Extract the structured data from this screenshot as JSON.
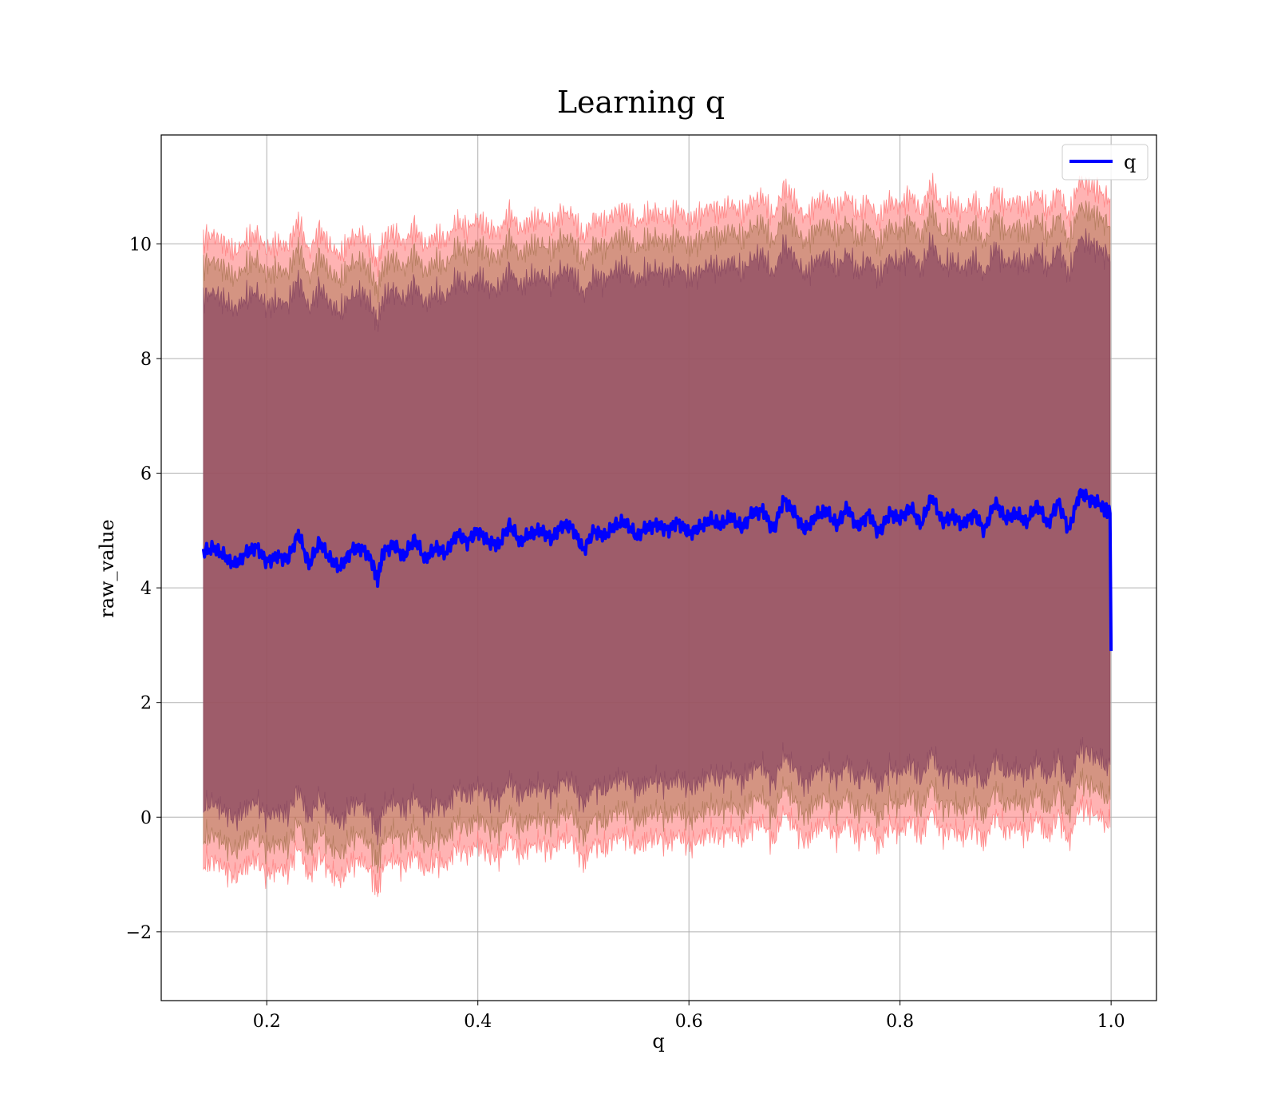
{
  "chart_data": {
    "type": "line",
    "title": "Learning q",
    "xlabel": "q",
    "ylabel": "raw_value",
    "xlim": [
      0.1,
      1.043
    ],
    "ylim": [
      -3.2,
      11.9
    ],
    "xticks": [
      0.2,
      0.4,
      0.6,
      0.8,
      1.0
    ],
    "xtick_labels": [
      "0.2",
      "0.4",
      "0.6",
      "0.8",
      "1.0"
    ],
    "yticks": [
      -2,
      0,
      2,
      4,
      6,
      8,
      10
    ],
    "ytick_labels": [
      "−2",
      "0",
      "2",
      "4",
      "6",
      "8",
      "10"
    ],
    "grid": true,
    "legend": {
      "position": "top-right",
      "entries": [
        {
          "name": "q",
          "color": "#0000ff"
        }
      ]
    },
    "series": [
      {
        "name": "q",
        "color": "#0000ff",
        "x": [
          0.14,
          0.15,
          0.16,
          0.17,
          0.18,
          0.19,
          0.2,
          0.21,
          0.22,
          0.23,
          0.24,
          0.25,
          0.26,
          0.27,
          0.28,
          0.29,
          0.3,
          0.305,
          0.31,
          0.32,
          0.33,
          0.34,
          0.35,
          0.36,
          0.37,
          0.38,
          0.39,
          0.4,
          0.41,
          0.42,
          0.43,
          0.44,
          0.45,
          0.46,
          0.47,
          0.48,
          0.49,
          0.5,
          0.51,
          0.52,
          0.53,
          0.54,
          0.55,
          0.56,
          0.57,
          0.58,
          0.59,
          0.6,
          0.61,
          0.62,
          0.63,
          0.64,
          0.65,
          0.66,
          0.67,
          0.68,
          0.69,
          0.7,
          0.71,
          0.72,
          0.73,
          0.74,
          0.75,
          0.76,
          0.77,
          0.78,
          0.79,
          0.8,
          0.81,
          0.82,
          0.83,
          0.84,
          0.85,
          0.86,
          0.87,
          0.88,
          0.89,
          0.9,
          0.91,
          0.92,
          0.93,
          0.94,
          0.95,
          0.96,
          0.97,
          0.98,
          0.99,
          0.999,
          1.0
        ],
        "y": [
          4.63,
          4.7,
          4.55,
          4.4,
          4.6,
          4.72,
          4.45,
          4.55,
          4.5,
          4.95,
          4.4,
          4.8,
          4.5,
          4.35,
          4.65,
          4.7,
          4.45,
          4.15,
          4.6,
          4.75,
          4.55,
          4.85,
          4.5,
          4.7,
          4.6,
          4.95,
          4.8,
          5.0,
          4.8,
          4.75,
          5.1,
          4.8,
          4.95,
          5.0,
          4.85,
          5.1,
          5.05,
          4.65,
          5.0,
          4.9,
          5.1,
          5.15,
          4.9,
          5.05,
          5.1,
          5.0,
          5.15,
          4.95,
          5.05,
          5.2,
          5.1,
          5.25,
          5.05,
          5.3,
          5.35,
          5.0,
          5.55,
          5.3,
          5.0,
          5.25,
          5.35,
          5.1,
          5.4,
          5.05,
          5.3,
          4.95,
          5.3,
          5.2,
          5.4,
          5.1,
          5.6,
          5.15,
          5.25,
          5.1,
          5.3,
          5.0,
          5.5,
          5.2,
          5.3,
          5.15,
          5.45,
          5.1,
          5.5,
          5.0,
          5.65,
          5.55,
          5.45,
          5.3,
          2.9
        ]
      }
    ],
    "bands": [
      {
        "name": "outer-band",
        "color": "#ff8080",
        "opacity": 0.6,
        "lower_offset": -5.45,
        "upper_offset": 5.45
      },
      {
        "name": "middle-band",
        "color": "#b07a5a",
        "opacity": 0.55,
        "lower_offset": -5.0,
        "upper_offset": 5.0
      },
      {
        "name": "inner-band",
        "color": "#8c4a62",
        "opacity": 0.75,
        "lower_offset": -4.45,
        "upper_offset": 4.45
      }
    ]
  }
}
